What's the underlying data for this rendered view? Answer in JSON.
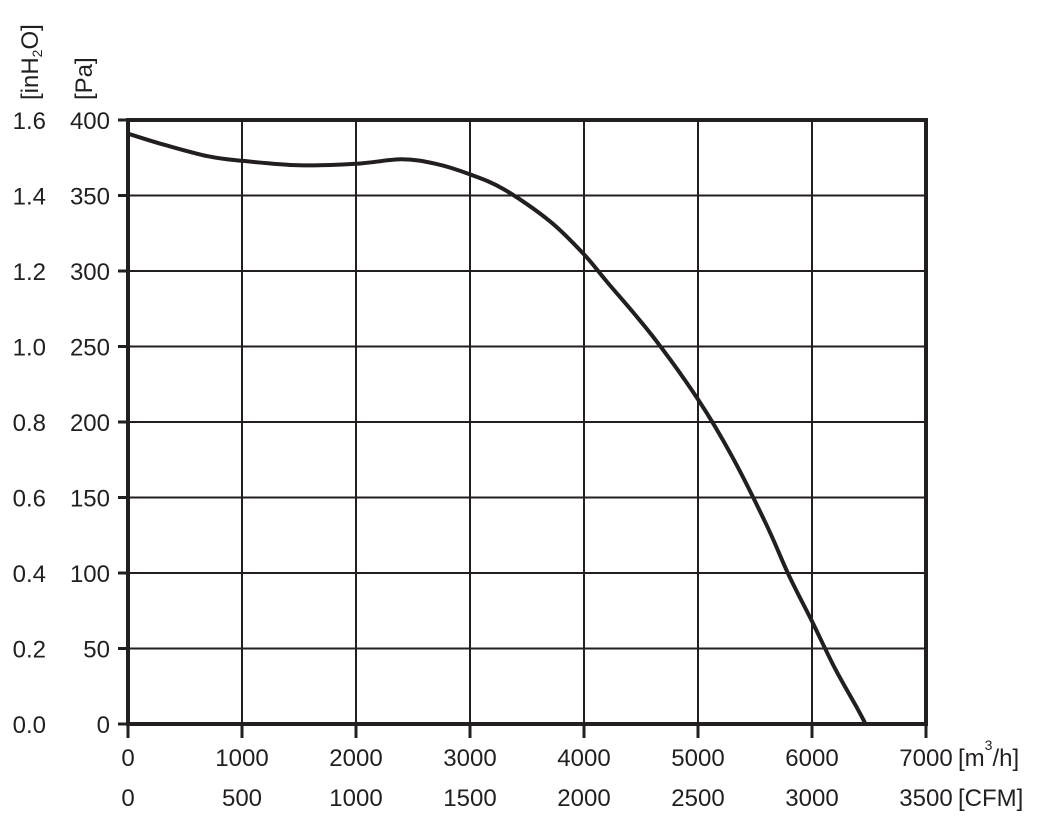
{
  "chart_data": {
    "type": "line",
    "title": "",
    "x_axis_primary": {
      "unit_prefix": "[m",
      "unit_sup": "3",
      "unit_suffix": "/h]",
      "ticks": [
        "0",
        "1000",
        "2000",
        "3000",
        "4000",
        "5000",
        "6000",
        "7000"
      ],
      "range": [
        0,
        7000
      ]
    },
    "x_axis_secondary": {
      "unit": "[CFM]",
      "ticks": [
        "0",
        "500",
        "1000",
        "1500",
        "2000",
        "2500",
        "3000",
        "3500"
      ]
    },
    "y_axis_primary": {
      "unit": "[Pa]",
      "ticks": [
        "0",
        "50",
        "100",
        "150",
        "200",
        "250",
        "300",
        "350",
        "400"
      ],
      "range": [
        0,
        400
      ]
    },
    "y_axis_secondary": {
      "unit_prefix": "[inH",
      "unit_sub": "2",
      "unit_suffix": "O]",
      "ticks": [
        "0.0",
        "0.2",
        "0.4",
        "0.6",
        "0.8",
        "1.0",
        "1.2",
        "1.4",
        "1.6"
      ]
    },
    "grid": true,
    "series": [
      {
        "color": "#231f20",
        "points": [
          [
            0,
            391
          ],
          [
            300,
            384
          ],
          [
            700,
            376
          ],
          [
            1000,
            373
          ],
          [
            1500,
            370
          ],
          [
            2000,
            371
          ],
          [
            2400,
            374
          ],
          [
            2700,
            371
          ],
          [
            3000,
            364
          ],
          [
            3300,
            354
          ],
          [
            3700,
            333
          ],
          [
            4000,
            311
          ],
          [
            4200,
            293
          ],
          [
            4600,
            257
          ],
          [
            5000,
            215
          ],
          [
            5300,
            177
          ],
          [
            5600,
            132
          ],
          [
            5800,
            98
          ],
          [
            6000,
            68
          ],
          [
            6200,
            37
          ],
          [
            6400,
            10
          ],
          [
            6470,
            0
          ]
        ]
      }
    ]
  }
}
